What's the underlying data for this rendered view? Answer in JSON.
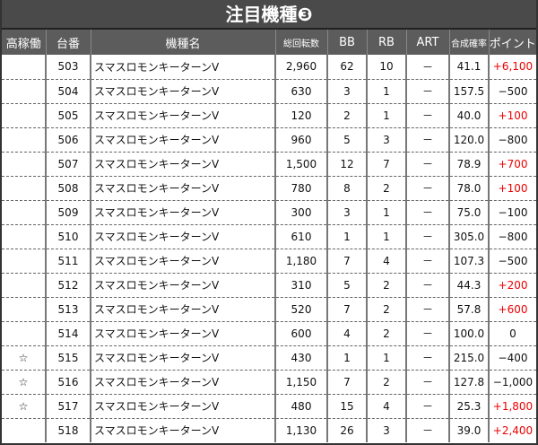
{
  "title": "注目機種❸",
  "colors": {
    "positive": "#e00000",
    "header_bg": "#5c5c5c",
    "title_bg": "#4a4a4a"
  },
  "headers": [
    "高稼働",
    "台番",
    "機種名",
    "総回転数",
    "BB",
    "RB",
    "ART",
    "合成確率",
    "ポイント"
  ],
  "rows": [
    {
      "star": "",
      "no": "503",
      "name": "スマスロモンキーターンV",
      "spins": "2,960",
      "bb": "62",
      "rb": "10",
      "art": "－",
      "rate": "41.1",
      "point": "+6,100"
    },
    {
      "star": "",
      "no": "504",
      "name": "スマスロモンキーターンV",
      "spins": "630",
      "bb": "3",
      "rb": "1",
      "art": "－",
      "rate": "157.5",
      "point": "−500"
    },
    {
      "star": "",
      "no": "505",
      "name": "スマスロモンキーターンV",
      "spins": "120",
      "bb": "2",
      "rb": "1",
      "art": "－",
      "rate": "40.0",
      "point": "+100"
    },
    {
      "star": "",
      "no": "506",
      "name": "スマスロモンキーターンV",
      "spins": "960",
      "bb": "5",
      "rb": "3",
      "art": "－",
      "rate": "120.0",
      "point": "−800"
    },
    {
      "star": "",
      "no": "507",
      "name": "スマスロモンキーターンV",
      "spins": "1,500",
      "bb": "12",
      "rb": "7",
      "art": "－",
      "rate": "78.9",
      "point": "+700"
    },
    {
      "star": "",
      "no": "508",
      "name": "スマスロモンキーターンV",
      "spins": "780",
      "bb": "8",
      "rb": "2",
      "art": "－",
      "rate": "78.0",
      "point": "+100"
    },
    {
      "star": "",
      "no": "509",
      "name": "スマスロモンキーターンV",
      "spins": "300",
      "bb": "3",
      "rb": "1",
      "art": "－",
      "rate": "75.0",
      "point": "−100"
    },
    {
      "star": "",
      "no": "510",
      "name": "スマスロモンキーターンV",
      "spins": "610",
      "bb": "1",
      "rb": "1",
      "art": "－",
      "rate": "305.0",
      "point": "−800"
    },
    {
      "star": "",
      "no": "511",
      "name": "スマスロモンキーターンV",
      "spins": "1,180",
      "bb": "7",
      "rb": "4",
      "art": "－",
      "rate": "107.3",
      "point": "−500"
    },
    {
      "star": "",
      "no": "512",
      "name": "スマスロモンキーターンV",
      "spins": "310",
      "bb": "5",
      "rb": "2",
      "art": "－",
      "rate": "44.3",
      "point": "+200"
    },
    {
      "star": "",
      "no": "513",
      "name": "スマスロモンキーターンV",
      "spins": "520",
      "bb": "7",
      "rb": "2",
      "art": "－",
      "rate": "57.8",
      "point": "+600"
    },
    {
      "star": "",
      "no": "514",
      "name": "スマスロモンキーターンV",
      "spins": "600",
      "bb": "4",
      "rb": "2",
      "art": "－",
      "rate": "100.0",
      "point": "0"
    },
    {
      "star": "☆",
      "no": "515",
      "name": "スマスロモンキーターンV",
      "spins": "430",
      "bb": "1",
      "rb": "1",
      "art": "－",
      "rate": "215.0",
      "point": "−400"
    },
    {
      "star": "☆",
      "no": "516",
      "name": "スマスロモンキーターンV",
      "spins": "1,150",
      "bb": "7",
      "rb": "2",
      "art": "－",
      "rate": "127.8",
      "point": "−1,000"
    },
    {
      "star": "☆",
      "no": "517",
      "name": "スマスロモンキーターンV",
      "spins": "480",
      "bb": "15",
      "rb": "4",
      "art": "－",
      "rate": "25.3",
      "point": "+1,800"
    },
    {
      "star": "",
      "no": "518",
      "name": "スマスロモンキーターンV",
      "spins": "1,130",
      "bb": "26",
      "rb": "3",
      "art": "－",
      "rate": "39.0",
      "point": "+2,400"
    }
  ]
}
